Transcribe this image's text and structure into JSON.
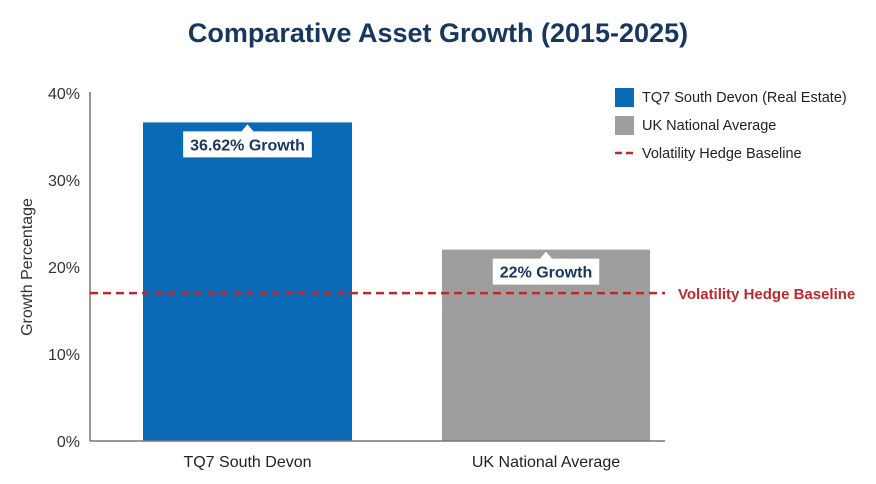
{
  "chart_data": {
    "type": "bar",
    "title": "Comparative Asset Growth (2015-2025)",
    "xlabel": "",
    "ylabel": "Growth Percentage",
    "ylim": [
      0,
      40
    ],
    "yticks": [
      0,
      10,
      20,
      30,
      40
    ],
    "ytick_labels": [
      "0%",
      "10%",
      "20%",
      "30%",
      "40%"
    ],
    "grid": false,
    "categories": [
      "TQ7 South Devon",
      "UK National Average"
    ],
    "values": [
      36.62,
      22
    ],
    "bar_colors": [
      "#0a6ab6",
      "#9e9e9e"
    ],
    "data_labels": [
      "36.62% Growth",
      "22% Growth"
    ],
    "reference_line": {
      "label": "Volatility Hedge Baseline",
      "value": 17,
      "color": "#c0282d",
      "style": "dashed"
    },
    "legend": {
      "placement": "top-right",
      "entries": [
        {
          "label": "TQ7 South Devon (Real Estate)",
          "color": "#0a6ab6",
          "marker": "square"
        },
        {
          "label": "UK National Average",
          "color": "#9e9e9e",
          "marker": "square"
        },
        {
          "label": "Volatility Hedge Baseline",
          "color": "#c0282d",
          "marker": "dashed-line"
        }
      ]
    }
  }
}
